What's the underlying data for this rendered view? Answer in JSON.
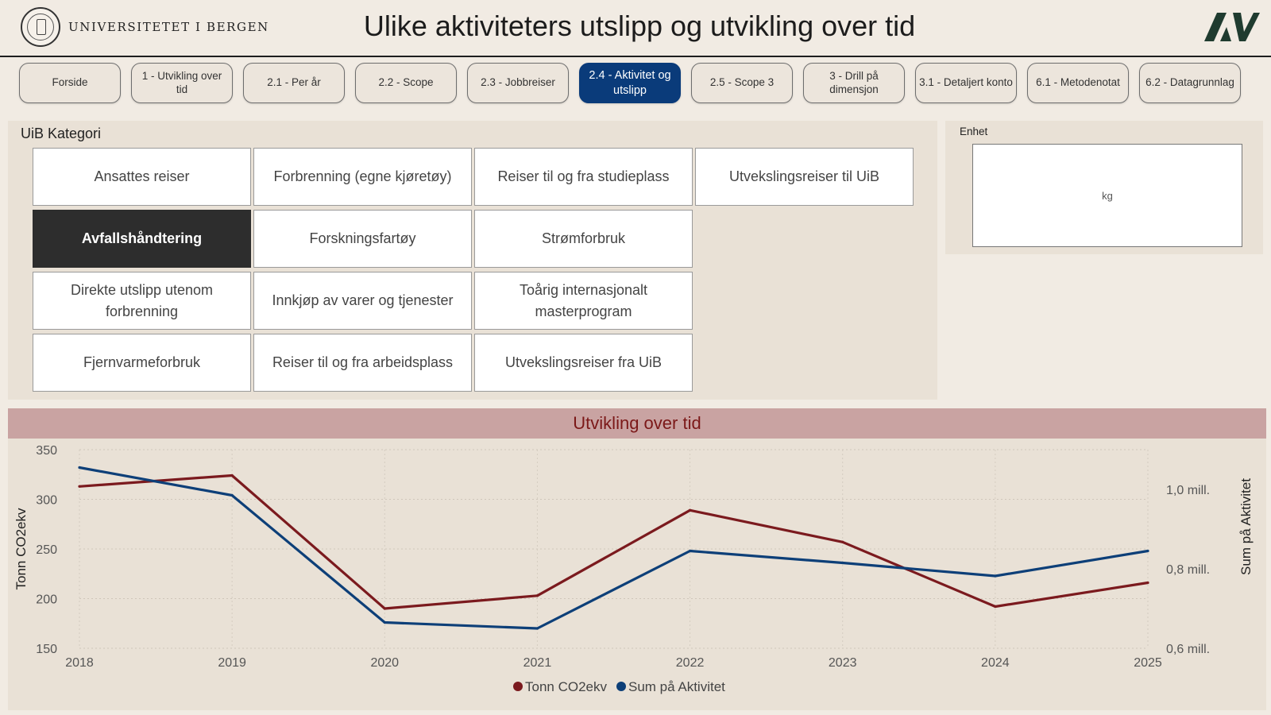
{
  "header": {
    "institution": "UNIVERSITETET I BERGEN",
    "title": "Ulike aktiviteters utslipp og utvikling over tid"
  },
  "nav": {
    "tabs": [
      {
        "label": "Forside",
        "active": false
      },
      {
        "label": "1 - Utvikling over tid",
        "active": false
      },
      {
        "label": "2.1 - Per år",
        "active": false
      },
      {
        "label": "2.2 - Scope",
        "active": false
      },
      {
        "label": "2.3 - Jobbreiser",
        "active": false
      },
      {
        "label": "2.4 - Aktivitet og utslipp",
        "active": true
      },
      {
        "label": "2.5 - Scope 3",
        "active": false
      },
      {
        "label": "3 - Drill på dimensjon",
        "active": false
      },
      {
        "label": "3.1 - Detaljert konto",
        "active": false
      },
      {
        "label": "6.1 - Metodenotat",
        "active": false
      },
      {
        "label": "6.2 - Datagrunnlag",
        "active": false
      }
    ]
  },
  "category_panel": {
    "title": "UiB Kategori",
    "columns": [
      [
        "Ansattes reiser",
        "Avfallshåndtering",
        "Direkte utslipp utenom forbrenning",
        "Fjernvarmeforbruk"
      ],
      [
        "Forbrenning (egne kjøretøy)",
        "Forskningsfartøy",
        "Innkjøp av varer og tjenester",
        "Reiser til og fra arbeidsplass"
      ],
      [
        "Reiser til og fra studieplass",
        "Strømforbruk",
        "Toårig internasjonalt masterprogram",
        "Utvekslingsreiser fra UiB"
      ],
      [
        "Utvekslingsreiser til UiB"
      ]
    ],
    "selected": "Avfallshåndtering"
  },
  "unit_panel": {
    "label": "Enhet",
    "value": "kg"
  },
  "colors": {
    "co2": "#7b1a1e",
    "activity": "#0d3f78",
    "active_tab": "#0a3b7a",
    "chart_header_bg": "#c9a3a2"
  },
  "chart_data": {
    "type": "line",
    "title": "Utvikling over tid",
    "x": [
      2018,
      2019,
      2020,
      2021,
      2022,
      2023,
      2024,
      2025
    ],
    "series": [
      {
        "name": "Tonn CO2ekv",
        "axis": "left",
        "values": [
          313,
          324,
          190,
          203,
          289,
          257,
          192,
          216
        ]
      },
      {
        "name": "Sum på Aktivitet",
        "axis": "right",
        "values": [
          1055000,
          985000,
          665000,
          650000,
          845000,
          815000,
          782000,
          845000
        ]
      }
    ],
    "ylabel": "Tonn CO2ekv",
    "ylim": [
      150,
      350
    ],
    "yticks": [
      "350",
      "300",
      "250",
      "200",
      "150"
    ],
    "y2label": "Sum på Aktivitet",
    "y2lim": [
      600000,
      1100000
    ],
    "y2ticks": [
      "1,0 mill.",
      "0,8 mill.",
      "0,6 mill."
    ],
    "y2tick_values": [
      1000000,
      800000,
      600000
    ],
    "grid": true,
    "legend": "bottom-center"
  }
}
